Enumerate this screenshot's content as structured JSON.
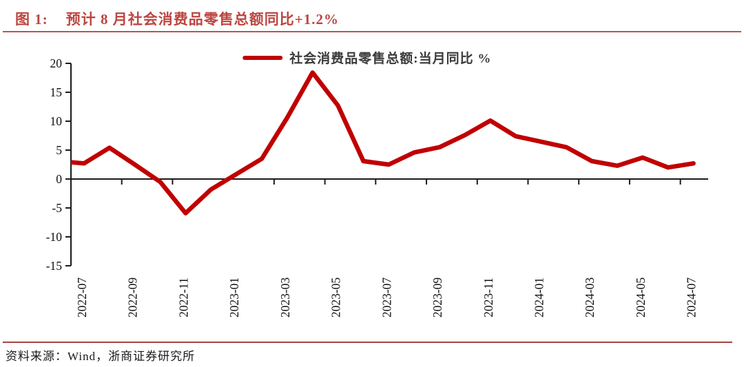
{
  "figure": {
    "label": "图 1:",
    "title": "预计 8 月社会消费品零售总额同比+1.2%"
  },
  "legend": {
    "label": "社会消费品零售总额:当月同比 %"
  },
  "footer": {
    "source": "资料来源：Wind，浙商证券研究所"
  },
  "colors": {
    "line": "#C00000",
    "accent_red": "#BC4540",
    "rule_red": "#C0504B",
    "axis": "#1A1A1A",
    "legend_text": "#3A3A3A"
  },
  "chart_data": {
    "type": "line",
    "title": "社会消费品零售总额:当月同比 %",
    "unit": "%",
    "x": [
      "2022-07",
      "2022-08",
      "2022-09",
      "2022-10",
      "2022-11",
      "2022-12",
      "2023-02",
      "2023-03",
      "2023-04",
      "2023-05",
      "2023-06",
      "2023-07",
      "2023-08",
      "2023-09",
      "2023-10",
      "2023-11",
      "2023-12",
      "2024-02",
      "2024-03",
      "2024-04",
      "2024-05",
      "2024-06",
      "2024-07"
    ],
    "values": [
      2.7,
      5.4,
      2.5,
      -0.5,
      -5.9,
      -1.8,
      3.5,
      10.6,
      18.4,
      12.7,
      3.1,
      2.5,
      4.6,
      5.5,
      7.6,
      10.1,
      7.4,
      5.5,
      3.1,
      2.3,
      3.7,
      2.0,
      2.7
    ],
    "leading_point_offscreen": {
      "x": "2022-06",
      "value": 3.1
    },
    "x_tick_labels": [
      "2022-07",
      "2022-09",
      "2022-11",
      "2023-01",
      "2023-03",
      "2023-05",
      "2023-07",
      "2023-09",
      "2023-11",
      "2024-01",
      "2024-03",
      "2024-05",
      "2024-07"
    ],
    "y_ticks": [
      20,
      15,
      10,
      5,
      0,
      -5,
      -10,
      -15
    ],
    "ylim": [
      -15,
      20
    ],
    "grid": false,
    "legend_position": "top",
    "x_axis_at_zero": true,
    "note_jan_omitted": "2023-01 and 2024-01 have no data points (Jan-Feb combined); line connects Dec directly to Feb"
  }
}
